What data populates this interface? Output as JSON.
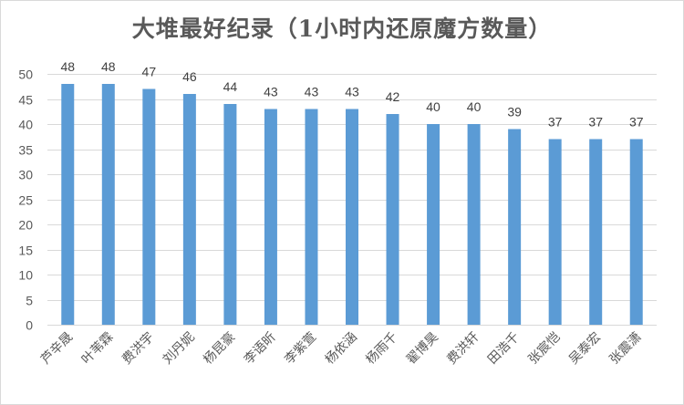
{
  "chart_data": {
    "type": "bar",
    "title": "大堆最好纪录（1小时内还原魔方数量）",
    "xlabel": "",
    "ylabel": "",
    "categories": [
      "芦辛晟",
      "叶苇霖",
      "费洪宇",
      "刘丹妮",
      "杨昆豪",
      "李语昕",
      "李紫萱",
      "杨依涵",
      "杨雨千",
      "翟博昊",
      "费洪轩",
      "田浩千",
      "张宸恺",
      "吴泰宏",
      "张震潇"
    ],
    "values": [
      48,
      48,
      47,
      46,
      44,
      43,
      43,
      43,
      42,
      40,
      40,
      39,
      37,
      37,
      37
    ],
    "data_labels": [
      "48",
      "48",
      "47",
      "46",
      "44",
      "43",
      "43",
      "43",
      "42",
      "40",
      "40",
      "39",
      "37",
      "37",
      "37"
    ],
    "ylim": [
      0,
      50
    ],
    "yticks": [
      0,
      5,
      10,
      15,
      20,
      25,
      30,
      35,
      40,
      45,
      50
    ],
    "ytick_labels": [
      "0",
      "5",
      "10",
      "15",
      "20",
      "25",
      "30",
      "35",
      "40",
      "45",
      "50"
    ],
    "grid": true,
    "legend": "none",
    "bar_color": "#5b9bd5"
  }
}
